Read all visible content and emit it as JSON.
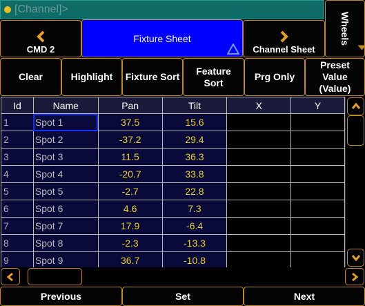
{
  "command_line": {
    "text": "[Channel]>"
  },
  "wheels": {
    "label": "Wheels"
  },
  "nav": {
    "prev_label": "CMD 2",
    "current_label": "Fixture Sheet",
    "next_label": "Channel Sheet"
  },
  "functions": {
    "clear": "Clear",
    "highlight": "Highlight",
    "fixture_sort": "Fixture Sort",
    "feature_sort": "Feature Sort",
    "prg_only": "Prg Only",
    "preset_value": "Preset Value (Value)"
  },
  "table": {
    "headers": [
      "Id",
      "Name",
      "Pan",
      "Tilt",
      "X",
      "Y"
    ],
    "rows": [
      {
        "id": "1",
        "name": "Spot 1",
        "pan": "37.5",
        "tilt": "15.6"
      },
      {
        "id": "2",
        "name": "Spot 2",
        "pan": "-37.2",
        "tilt": "29.4"
      },
      {
        "id": "3",
        "name": "Spot 3",
        "pan": "11.5",
        "tilt": "36.3"
      },
      {
        "id": "4",
        "name": "Spot 4",
        "pan": "-20.7",
        "tilt": "33.8"
      },
      {
        "id": "5",
        "name": "Spot 5",
        "pan": "-2.7",
        "tilt": "22.8"
      },
      {
        "id": "6",
        "name": "Spot 6",
        "pan": "4.6",
        "tilt": "7.3"
      },
      {
        "id": "7",
        "name": "Spot 7",
        "pan": "17.9",
        "tilt": "-6.4"
      },
      {
        "id": "8",
        "name": "Spot 8",
        "pan": "-2.3",
        "tilt": "-13.3"
      },
      {
        "id": "9",
        "name": "Spot 9",
        "pan": "36.7",
        "tilt": "-10.8"
      }
    ]
  },
  "bottom": {
    "previous": "Previous",
    "set": "Set",
    "next": "Next"
  },
  "colors": {
    "accent": "#c08a1e",
    "active_tab": "#0000ff",
    "value_text": "#e8d020",
    "cmdline_bg": "#0e6b66"
  }
}
